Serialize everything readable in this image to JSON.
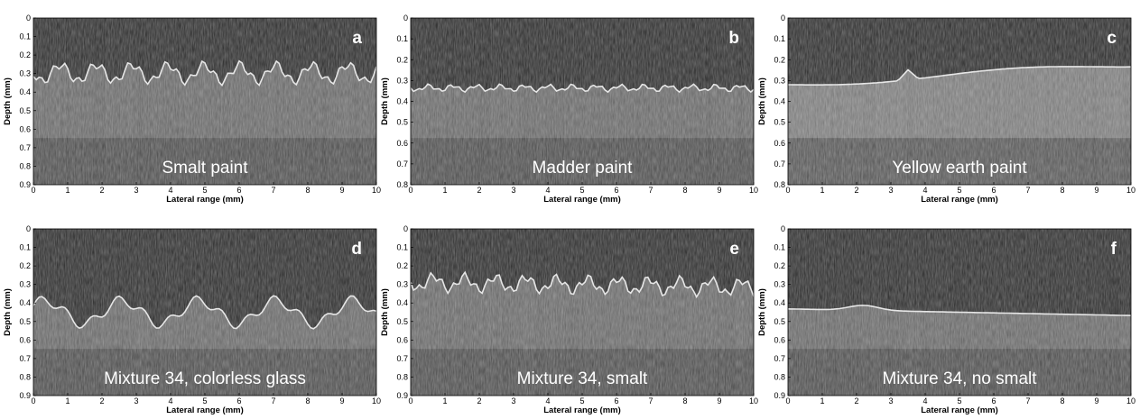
{
  "figure": {
    "panels": [
      {
        "letter": "a",
        "caption": "Smalt paint",
        "xlabel": "Lateral range (mm)",
        "ylabel": "Depth (mm)",
        "x_ticks": [
          "0",
          "1",
          "2",
          "3",
          "4",
          "5",
          "6",
          "7",
          "8",
          "9",
          "10"
        ],
        "y_ticks": [
          "0",
          "0.1",
          "0.2",
          "0.3",
          "0.4",
          "0.5",
          "0.6",
          "0.7",
          "0.8",
          "0.9"
        ],
        "xlim": [
          0,
          10
        ],
        "ylim": [
          0,
          0.9
        ]
      },
      {
        "letter": "b",
        "caption": "Madder paint",
        "xlabel": "Lateral range (mm)",
        "ylabel": "Depth (mm)",
        "x_ticks": [
          "0",
          "1",
          "2",
          "3",
          "4",
          "5",
          "6",
          "7",
          "8",
          "9",
          "10"
        ],
        "y_ticks": [
          "0",
          "0.1",
          "0.2",
          "0.3",
          "0.4",
          "0.5",
          "0.6",
          "0.7",
          "0.8"
        ],
        "xlim": [
          0,
          10
        ],
        "ylim": [
          0,
          0.8
        ]
      },
      {
        "letter": "c",
        "caption": "Yellow earth paint",
        "xlabel": "Lateral range (mm)",
        "ylabel": "Depth (mm)",
        "x_ticks": [
          "0",
          "1",
          "2",
          "3",
          "4",
          "5",
          "6",
          "7",
          "8",
          "9",
          "10"
        ],
        "y_ticks": [
          "0",
          "0.1",
          "0.2",
          "0.3",
          "0.4",
          "0.5",
          "0.6",
          "0.7",
          "0.8"
        ],
        "xlim": [
          0,
          10
        ],
        "ylim": [
          0,
          0.8
        ]
      },
      {
        "letter": "d",
        "caption": "Mixture 34, colorless glass",
        "xlabel": "Lateral range (mm)",
        "ylabel": "Depth (mm)",
        "x_ticks": [
          "0",
          "1",
          "2",
          "3",
          "4",
          "5",
          "6",
          "7",
          "8",
          "9",
          "10"
        ],
        "y_ticks": [
          "0",
          "0.1",
          "0.2",
          "0.3",
          "0.4",
          "0.5",
          "0.6",
          "0.7",
          "0.8",
          "0.9"
        ],
        "xlim": [
          0,
          10
        ],
        "ylim": [
          0,
          0.9
        ]
      },
      {
        "letter": "e",
        "caption": "Mixture 34,  smalt",
        "xlabel": "Lateral range (mm)",
        "ylabel": "Depth (mm)",
        "x_ticks": [
          "0",
          "1",
          "2",
          "3",
          "4",
          "5",
          "6",
          "7",
          "8",
          "9",
          "10"
        ],
        "y_ticks": [
          "0",
          "0.1",
          "0.2",
          "0.3",
          "0.4",
          "0.5",
          "0.6",
          "0.7",
          "0.8",
          "0.9"
        ],
        "xlim": [
          0,
          10
        ],
        "ylim": [
          0,
          0.9
        ]
      },
      {
        "letter": "f",
        "caption": "Mixture 34, no smalt",
        "xlabel": "Lateral range (mm)",
        "ylabel": "Depth (mm)",
        "x_ticks": [
          "0",
          "1",
          "2",
          "3",
          "4",
          "5",
          "6",
          "7",
          "8",
          "9",
          "10"
        ],
        "y_ticks": [
          "0",
          "0.1",
          "0.2",
          "0.3",
          "0.4",
          "0.5",
          "0.6",
          "0.7",
          "0.8",
          "0.9"
        ],
        "xlim": [
          0,
          10
        ],
        "ylim": [
          0,
          0.9
        ]
      }
    ]
  }
}
